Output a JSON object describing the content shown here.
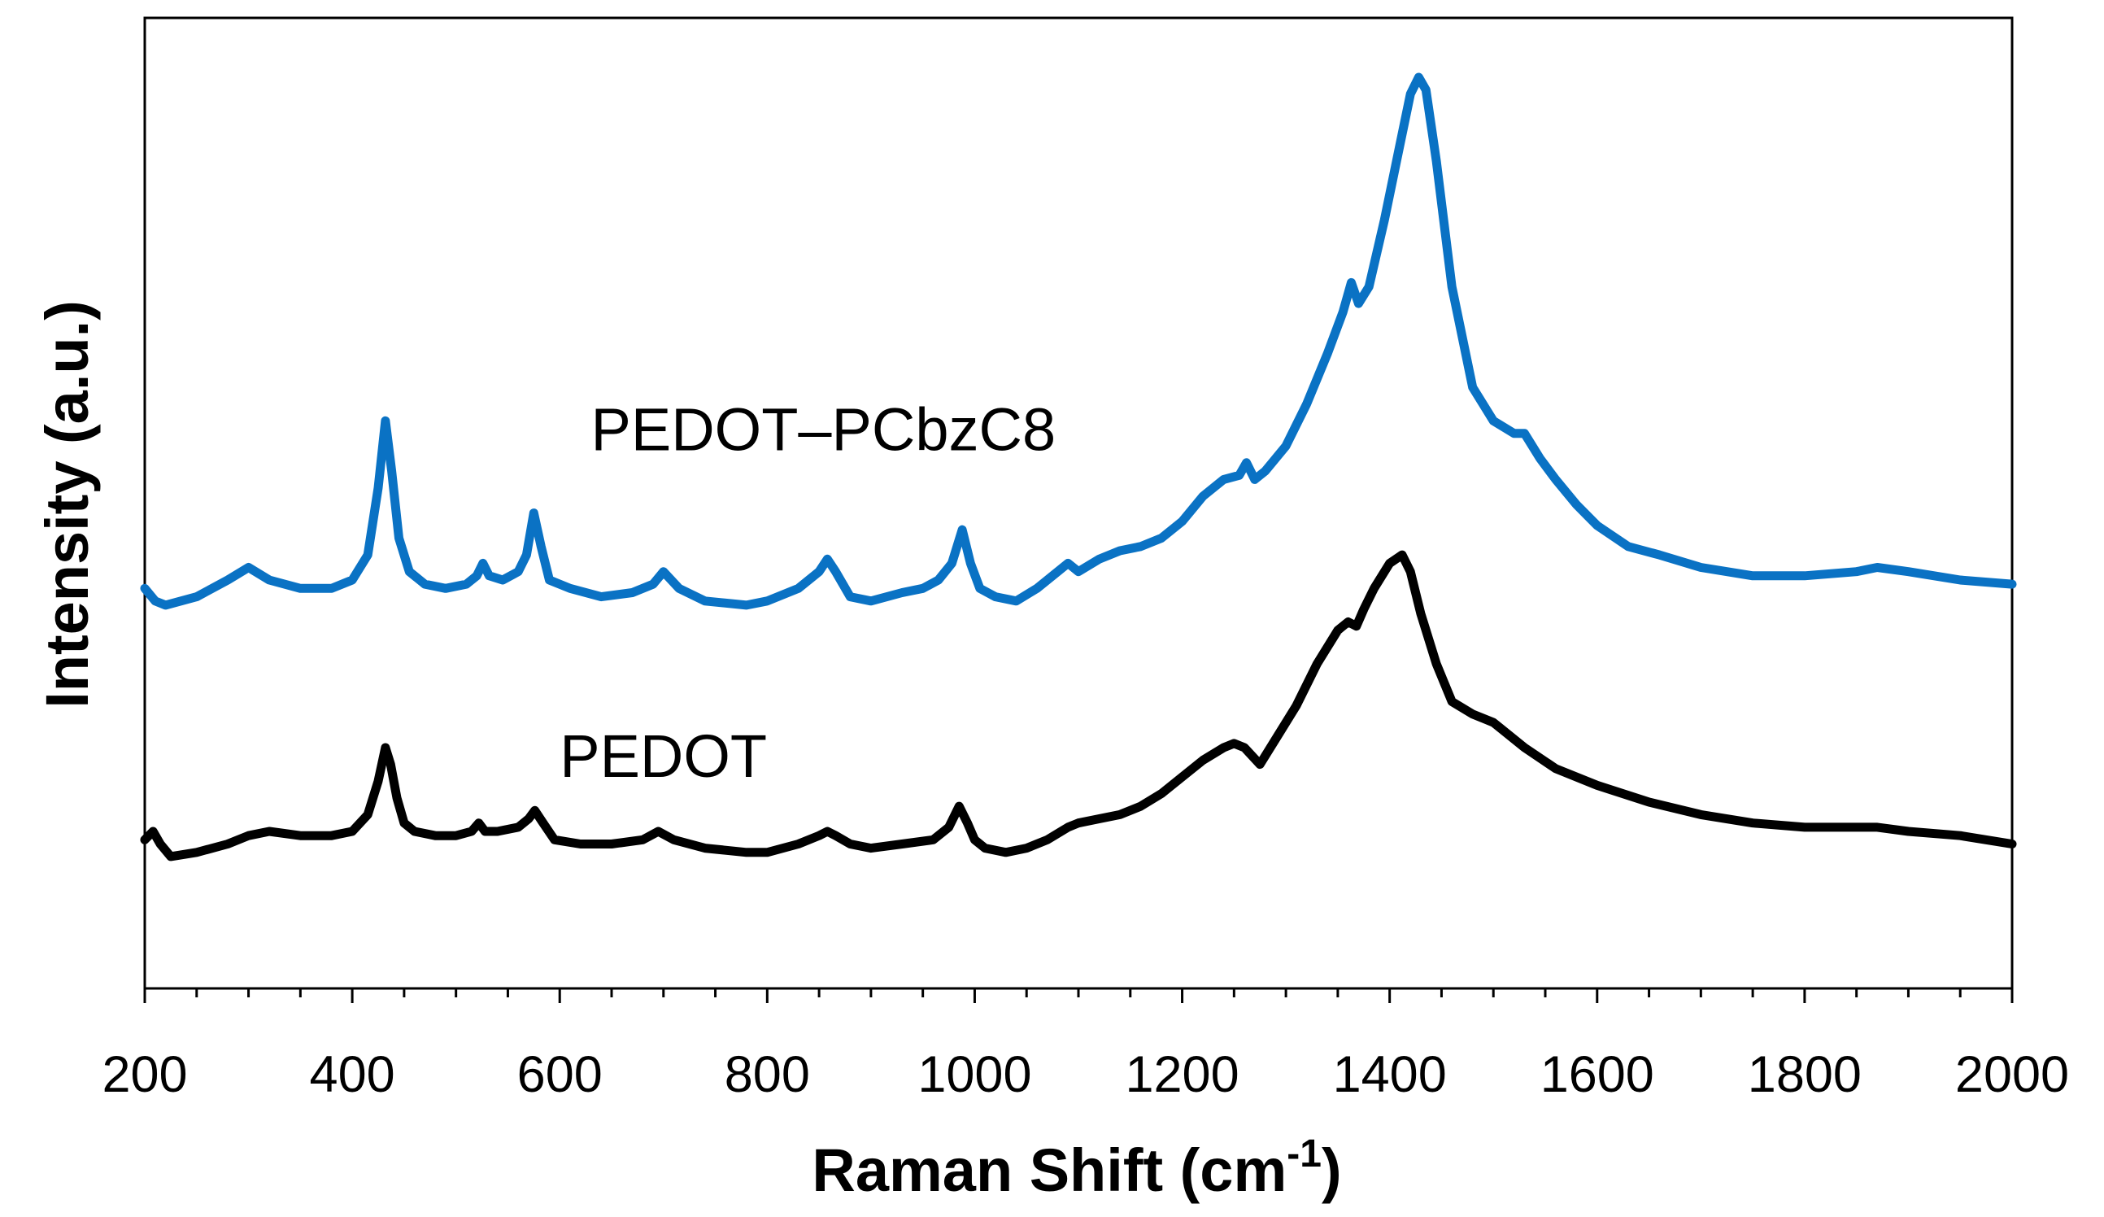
{
  "chart_data": {
    "type": "line",
    "title": "",
    "xlabel": "Raman Shift (cm",
    "xlabel_superscript": "-1",
    "xlabel_suffix": ")",
    "ylabel": "Intensity (a.u.)",
    "xlim": [
      200,
      2000
    ],
    "ylim": [
      0,
      1
    ],
    "x_ticks": [
      200,
      400,
      600,
      800,
      1000,
      1200,
      1400,
      1600,
      1800,
      2000
    ],
    "y_ticks": [],
    "grid": false,
    "annotations": [
      {
        "text": "PEDOT–PCbzC8",
        "x": 630,
        "y": 0.555
      },
      {
        "text": "PEDOT",
        "x": 600,
        "y": 0.165
      }
    ],
    "series": [
      {
        "name": "PEDOT–PCbzC8",
        "color": "#0a72c4",
        "x": [
          200,
          210,
          220,
          250,
          280,
          300,
          320,
          350,
          380,
          400,
          415,
          425,
          432,
          438,
          445,
          455,
          470,
          490,
          510,
          520,
          526,
          532,
          545,
          560,
          568,
          575,
          582,
          590,
          610,
          640,
          670,
          690,
          700,
          715,
          740,
          780,
          800,
          830,
          850,
          858,
          866,
          880,
          900,
          930,
          950,
          965,
          978,
          988,
          996,
          1005,
          1020,
          1040,
          1060,
          1080,
          1090,
          1100,
          1120,
          1140,
          1160,
          1180,
          1200,
          1220,
          1240,
          1255,
          1262,
          1270,
          1280,
          1300,
          1320,
          1340,
          1355,
          1363,
          1370,
          1380,
          1395,
          1410,
          1420,
          1428,
          1435,
          1445,
          1460,
          1480,
          1500,
          1520,
          1530,
          1545,
          1560,
          1580,
          1600,
          1630,
          1660,
          1700,
          1750,
          1800,
          1850,
          1870,
          1900,
          1950,
          2000
        ],
        "y": [
          0.39,
          0.375,
          0.37,
          0.38,
          0.4,
          0.415,
          0.4,
          0.39,
          0.39,
          0.4,
          0.43,
          0.51,
          0.59,
          0.53,
          0.45,
          0.41,
          0.395,
          0.39,
          0.395,
          0.405,
          0.42,
          0.405,
          0.4,
          0.41,
          0.43,
          0.48,
          0.44,
          0.4,
          0.39,
          0.38,
          0.385,
          0.395,
          0.41,
          0.39,
          0.375,
          0.37,
          0.375,
          0.39,
          0.41,
          0.425,
          0.41,
          0.38,
          0.375,
          0.385,
          0.39,
          0.4,
          0.42,
          0.46,
          0.42,
          0.39,
          0.38,
          0.375,
          0.39,
          0.41,
          0.42,
          0.41,
          0.425,
          0.435,
          0.44,
          0.45,
          0.47,
          0.5,
          0.52,
          0.525,
          0.54,
          0.52,
          0.53,
          0.56,
          0.61,
          0.67,
          0.72,
          0.755,
          0.73,
          0.75,
          0.83,
          0.92,
          0.98,
          1.0,
          0.985,
          0.9,
          0.75,
          0.63,
          0.59,
          0.575,
          0.575,
          0.545,
          0.52,
          0.49,
          0.465,
          0.44,
          0.43,
          0.415,
          0.405,
          0.405,
          0.41,
          0.415,
          0.41,
          0.4,
          0.395
        ]
      },
      {
        "name": "PEDOT",
        "color": "#000000",
        "x": [
          200,
          208,
          215,
          225,
          250,
          280,
          300,
          320,
          350,
          380,
          400,
          415,
          425,
          432,
          437,
          443,
          450,
          460,
          480,
          500,
          515,
          522,
          528,
          540,
          560,
          570,
          576,
          584,
          595,
          620,
          650,
          680,
          695,
          710,
          740,
          780,
          800,
          830,
          850,
          858,
          866,
          880,
          900,
          930,
          960,
          975,
          985,
          993,
          1000,
          1010,
          1030,
          1050,
          1070,
          1090,
          1100,
          1120,
          1140,
          1160,
          1180,
          1200,
          1220,
          1240,
          1250,
          1260,
          1275,
          1290,
          1310,
          1330,
          1350,
          1360,
          1368,
          1375,
          1385,
          1400,
          1412,
          1420,
          1430,
          1445,
          1460,
          1480,
          1500,
          1530,
          1560,
          1600,
          1650,
          1700,
          1750,
          1800,
          1850,
          1870,
          1900,
          1950,
          2000
        ],
        "y": [
          0.09,
          0.1,
          0.085,
          0.07,
          0.075,
          0.085,
          0.095,
          0.1,
          0.095,
          0.095,
          0.1,
          0.12,
          0.16,
          0.2,
          0.18,
          0.14,
          0.11,
          0.1,
          0.095,
          0.095,
          0.1,
          0.11,
          0.1,
          0.1,
          0.105,
          0.115,
          0.125,
          0.11,
          0.09,
          0.085,
          0.085,
          0.09,
          0.1,
          0.09,
          0.08,
          0.075,
          0.075,
          0.085,
          0.095,
          0.1,
          0.095,
          0.085,
          0.08,
          0.085,
          0.09,
          0.105,
          0.13,
          0.11,
          0.09,
          0.08,
          0.075,
          0.08,
          0.09,
          0.105,
          0.11,
          0.115,
          0.12,
          0.13,
          0.145,
          0.165,
          0.185,
          0.2,
          0.205,
          0.2,
          0.18,
          0.21,
          0.25,
          0.3,
          0.34,
          0.35,
          0.345,
          0.365,
          0.39,
          0.42,
          0.43,
          0.41,
          0.36,
          0.3,
          0.255,
          0.24,
          0.23,
          0.2,
          0.175,
          0.155,
          0.135,
          0.12,
          0.11,
          0.105,
          0.105,
          0.105,
          0.1,
          0.095,
          0.085
        ]
      }
    ]
  }
}
